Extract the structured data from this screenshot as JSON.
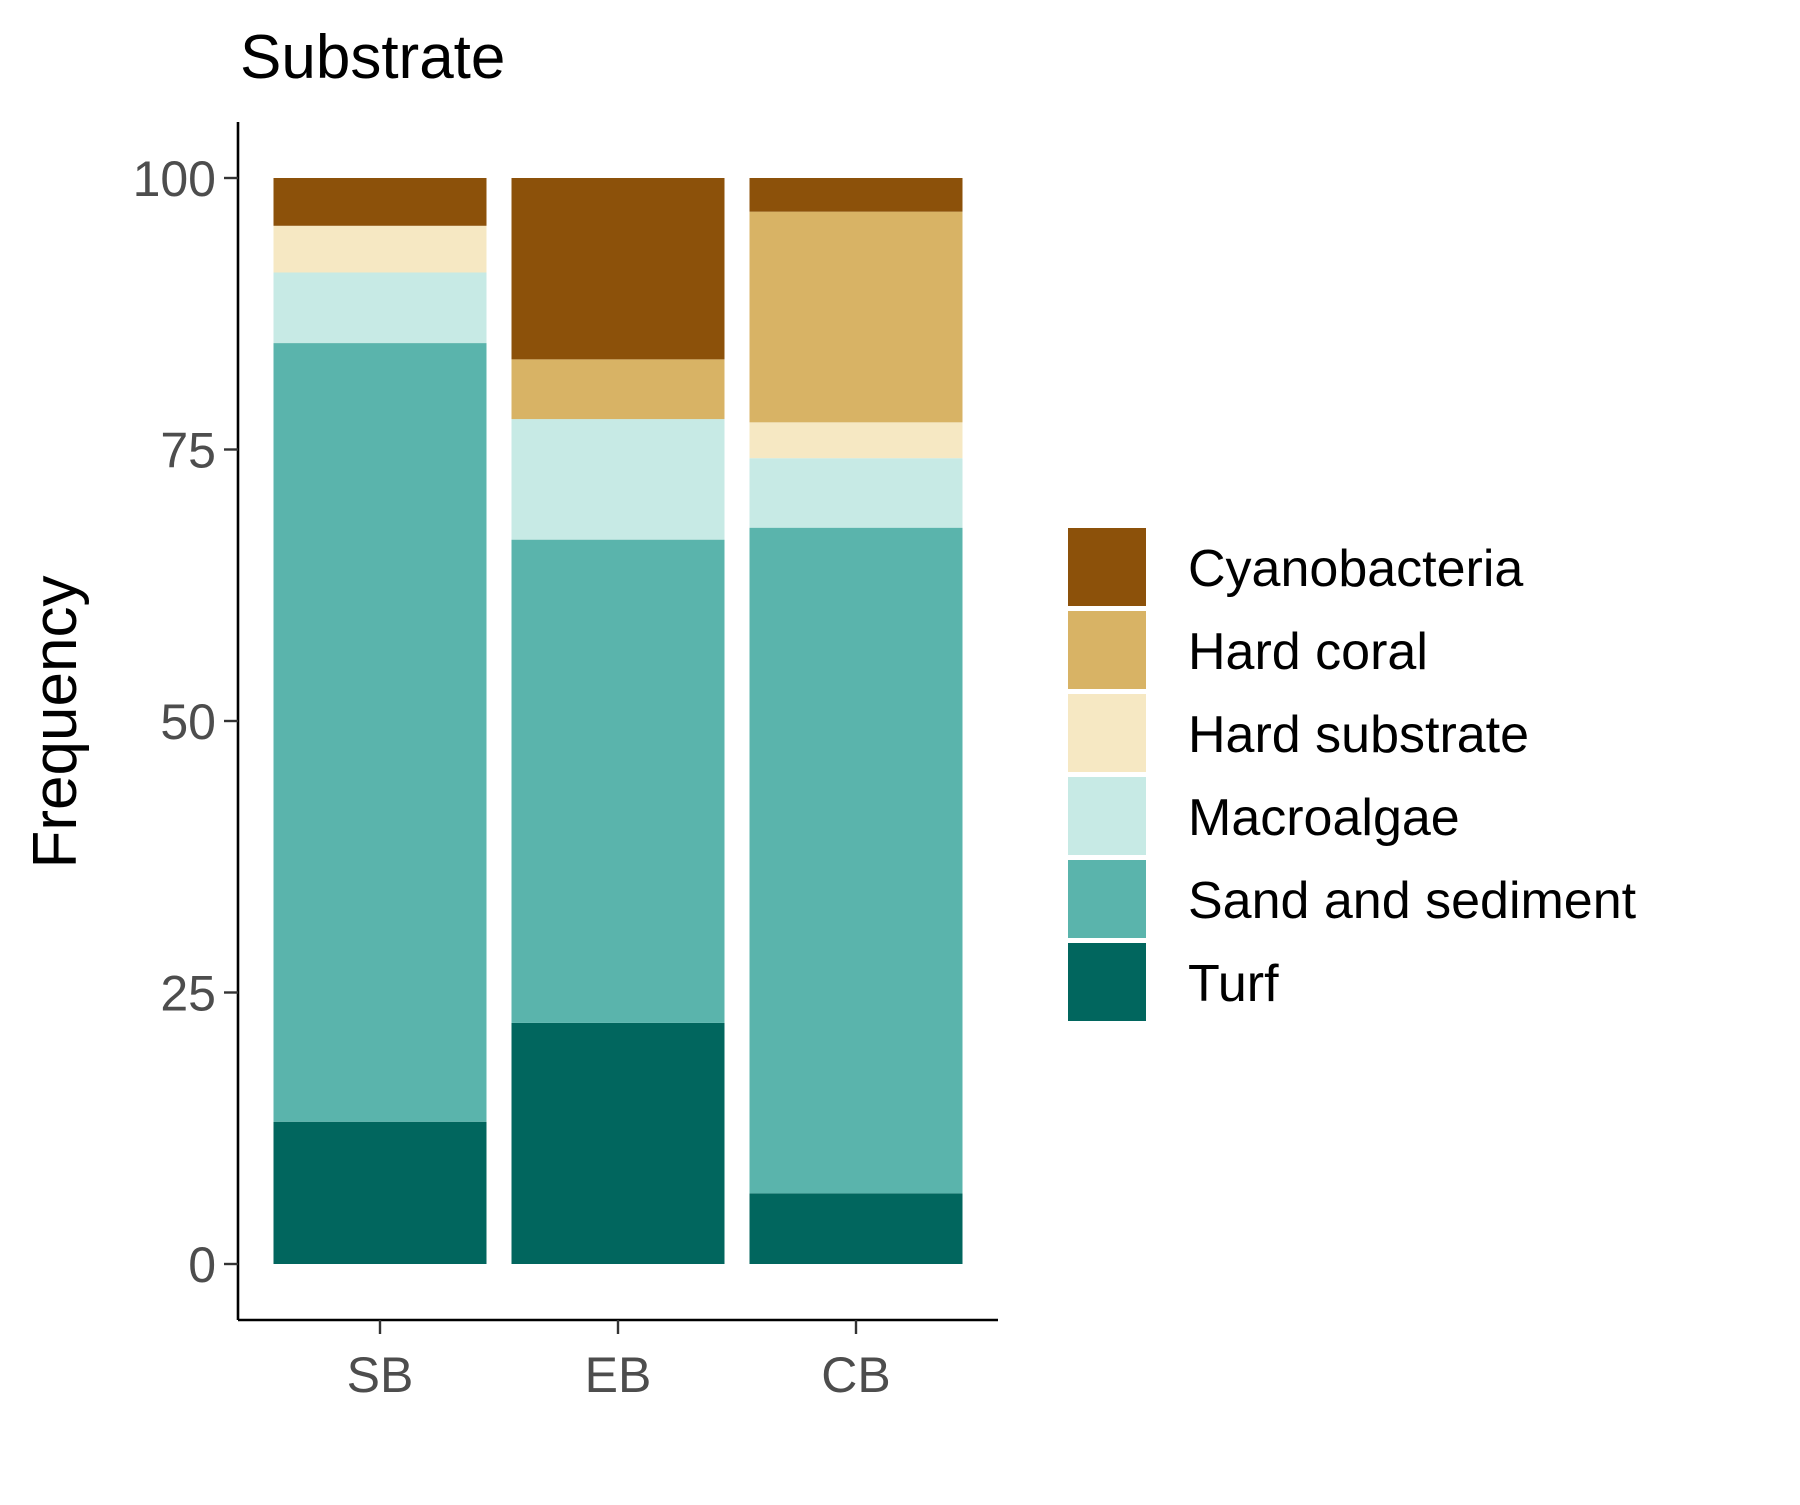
{
  "chart_data": {
    "type": "bar",
    "stacked": true,
    "title": "Substrate",
    "xlabel": "",
    "ylabel": "Frequency",
    "ylim": [
      0,
      100
    ],
    "yticks": [
      0,
      25,
      50,
      75,
      100
    ],
    "categories": [
      "SB",
      "EB",
      "CB"
    ],
    "series": [
      {
        "name": "Turf",
        "color": "#01665e",
        "values": [
          13.1,
          22.2,
          6.5
        ]
      },
      {
        "name": "Sand and sediment",
        "color": "#5ab4ac",
        "values": [
          71.7,
          44.5,
          61.3
        ]
      },
      {
        "name": "Macroalgae",
        "color": "#c7eae5",
        "values": [
          6.5,
          11.1,
          6.4
        ]
      },
      {
        "name": "Hard substrate",
        "color": "#f6e8c3",
        "values": [
          4.3,
          0,
          3.3
        ]
      },
      {
        "name": "Hard coral",
        "color": "#d8b365",
        "values": [
          0,
          5.5,
          19.4
        ]
      },
      {
        "name": "Cyanobacteria",
        "color": "#8c510a",
        "values": [
          4.4,
          16.7,
          3.1
        ]
      }
    ],
    "legend": {
      "position": "right",
      "order": [
        "Cyanobacteria",
        "Hard coral",
        "Hard substrate",
        "Macroalgae",
        "Sand and sediment",
        "Turf"
      ]
    },
    "grid": false
  }
}
